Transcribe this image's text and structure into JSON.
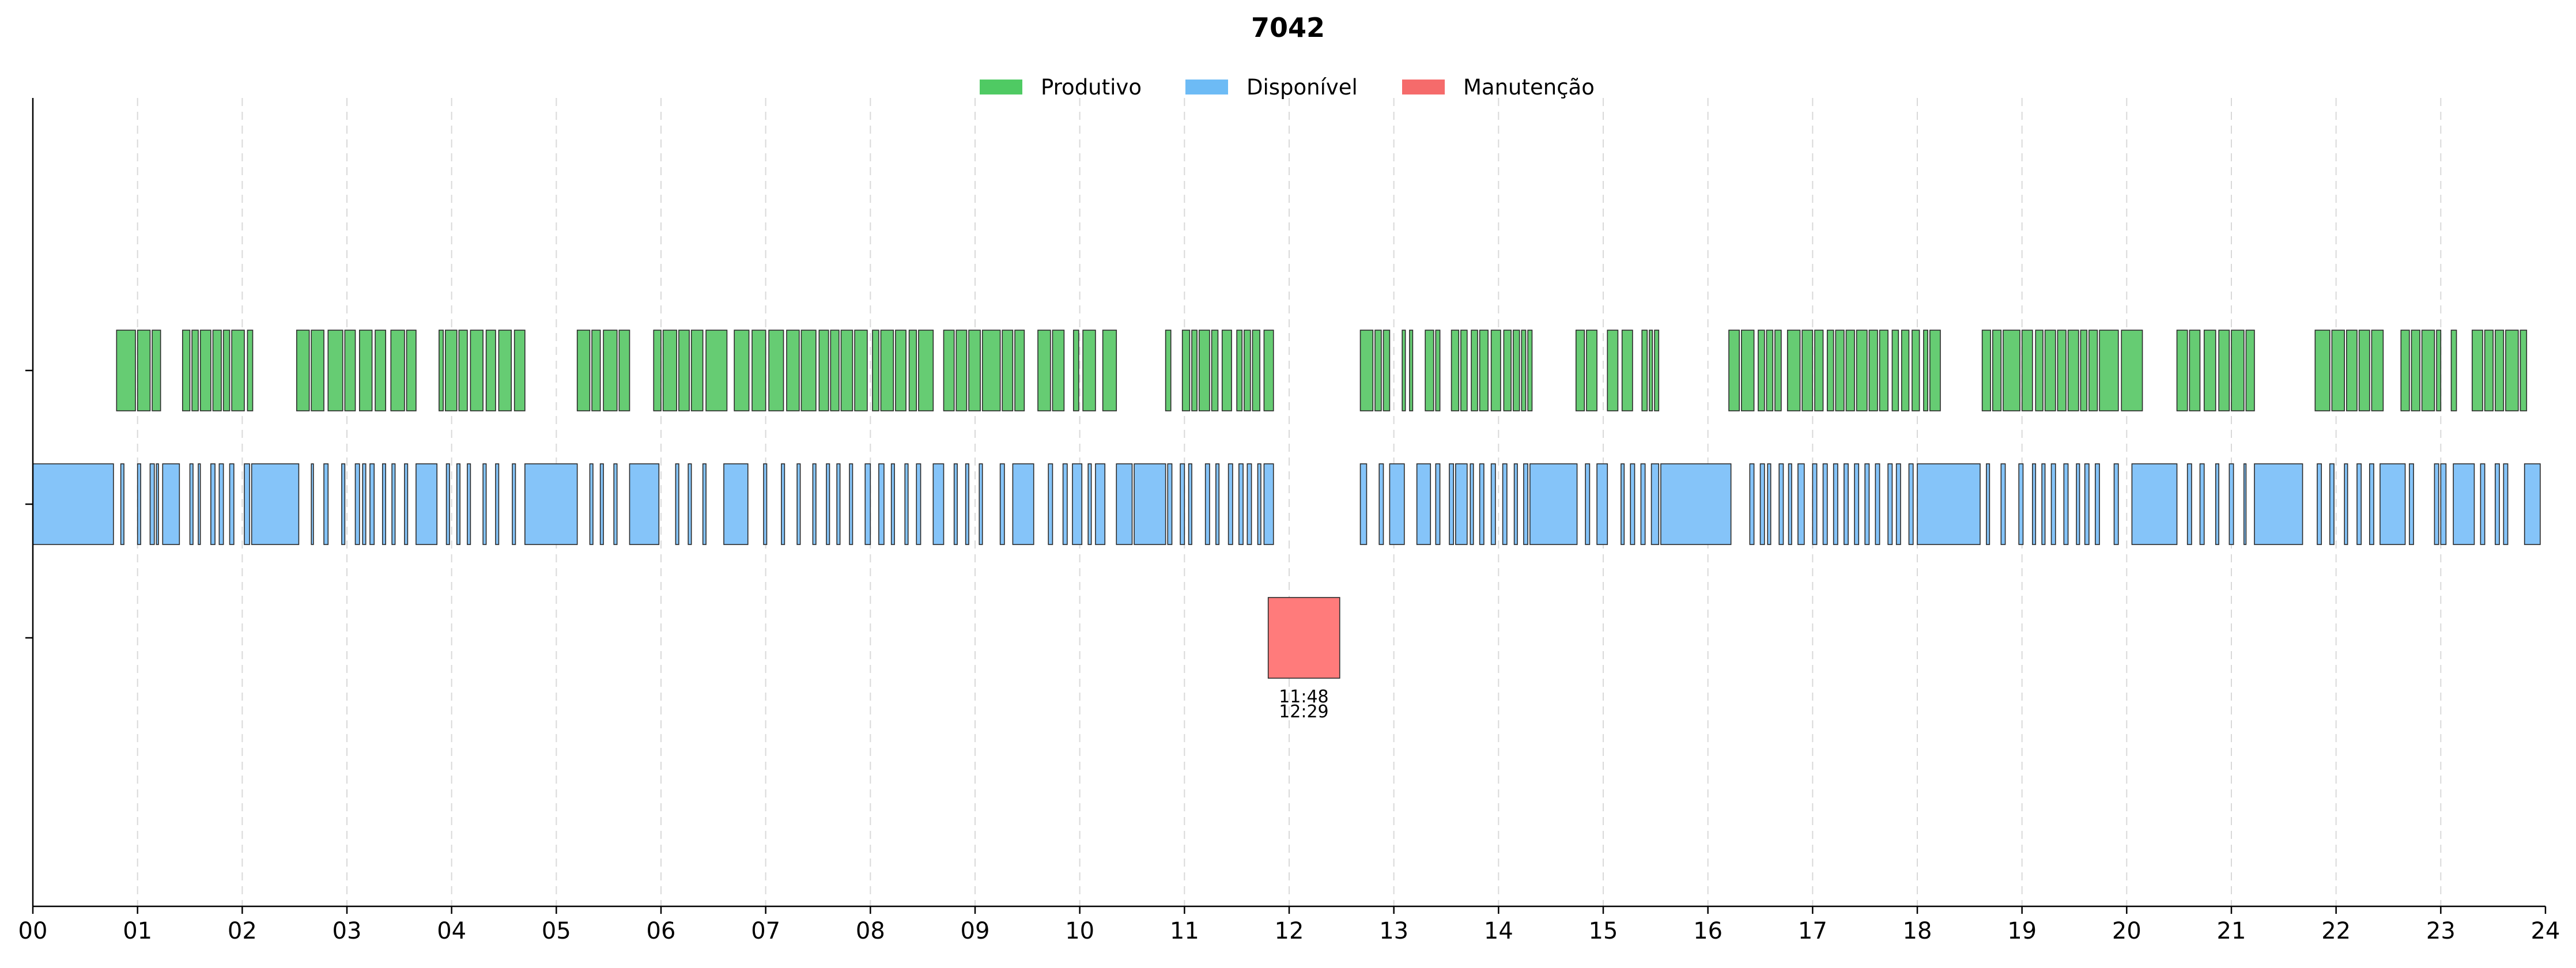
{
  "chart_data": {
    "type": "timeline",
    "title": "7042",
    "xlabel": "",
    "ylabel": "",
    "xlim": [
      0,
      24
    ],
    "x_ticks": [
      "00",
      "01",
      "02",
      "03",
      "04",
      "05",
      "06",
      "07",
      "08",
      "09",
      "10",
      "11",
      "12",
      "13",
      "14",
      "15",
      "16",
      "17",
      "18",
      "19",
      "20",
      "21",
      "22",
      "23",
      "24"
    ],
    "grid": "vertical dashed at each hour",
    "legend": {
      "placement": "top-center",
      "entries": [
        "Produtivo",
        "Disponível",
        "Manutenção"
      ]
    },
    "colors": {
      "Produtivo": "#66cc73",
      "Disponível": "#85c4f9",
      "Manutenção": "#ff7b7b",
      "legend_Produtivo": "#4fca63",
      "legend_Disponível": "#6dbbf5",
      "legend_Manutenção": "#f56b6b"
    },
    "series": [
      {
        "name": "Produtivo",
        "row": 0,
        "intervals": [
          [
            0.8,
            0.98
          ],
          [
            1.0,
            1.12
          ],
          [
            1.14,
            1.22
          ],
          [
            1.43,
            1.5
          ],
          [
            1.52,
            1.58
          ],
          [
            1.6,
            1.7
          ],
          [
            1.72,
            1.8
          ],
          [
            1.82,
            1.88
          ],
          [
            1.9,
            2.02
          ],
          [
            2.05,
            2.1
          ],
          [
            2.52,
            2.64
          ],
          [
            2.66,
            2.78
          ],
          [
            2.82,
            2.96
          ],
          [
            2.98,
            3.08
          ],
          [
            3.12,
            3.24
          ],
          [
            3.27,
            3.37
          ],
          [
            3.42,
            3.55
          ],
          [
            3.57,
            3.66
          ],
          [
            3.88,
            3.92
          ],
          [
            3.94,
            4.05
          ],
          [
            4.07,
            4.15
          ],
          [
            4.18,
            4.3
          ],
          [
            4.33,
            4.42
          ],
          [
            4.45,
            4.57
          ],
          [
            4.6,
            4.7
          ],
          [
            5.2,
            5.32
          ],
          [
            5.34,
            5.42
          ],
          [
            5.45,
            5.58
          ],
          [
            5.6,
            5.7
          ],
          [
            5.93,
            6.0
          ],
          [
            6.02,
            6.15
          ],
          [
            6.17,
            6.27
          ],
          [
            6.29,
            6.4
          ],
          [
            6.43,
            6.63
          ],
          [
            6.7,
            6.84
          ],
          [
            6.87,
            7.0
          ],
          [
            7.03,
            7.17
          ],
          [
            7.2,
            7.32
          ],
          [
            7.34,
            7.48
          ],
          [
            7.51,
            7.6
          ],
          [
            7.62,
            7.7
          ],
          [
            7.72,
            7.83
          ],
          [
            7.85,
            7.97
          ],
          [
            8.02,
            8.08
          ],
          [
            8.1,
            8.22
          ],
          [
            8.24,
            8.34
          ],
          [
            8.37,
            8.44
          ],
          [
            8.46,
            8.6
          ],
          [
            8.7,
            8.8
          ],
          [
            8.82,
            8.92
          ],
          [
            8.94,
            9.05
          ],
          [
            9.07,
            9.24
          ],
          [
            9.26,
            9.36
          ],
          [
            9.38,
            9.47
          ],
          [
            9.6,
            9.72
          ],
          [
            9.74,
            9.85
          ],
          [
            9.94,
            9.99
          ],
          [
            10.03,
            10.15
          ],
          [
            10.22,
            10.35
          ],
          [
            10.82,
            10.87
          ],
          [
            10.98,
            11.05
          ],
          [
            11.07,
            11.12
          ],
          [
            11.14,
            11.24
          ],
          [
            11.26,
            11.32
          ],
          [
            11.36,
            11.45
          ],
          [
            11.5,
            11.55
          ],
          [
            11.57,
            11.63
          ],
          [
            11.65,
            11.72
          ],
          [
            11.76,
            11.85
          ],
          [
            12.68,
            12.8
          ],
          [
            12.82,
            12.88
          ],
          [
            12.9,
            12.96
          ],
          [
            13.08,
            13.11
          ],
          [
            13.15,
            13.18
          ],
          [
            13.3,
            13.38
          ],
          [
            13.4,
            13.44
          ],
          [
            13.55,
            13.62
          ],
          [
            13.64,
            13.7
          ],
          [
            13.74,
            13.8
          ],
          [
            13.82,
            13.9
          ],
          [
            13.93,
            14.02
          ],
          [
            14.05,
            14.12
          ],
          [
            14.14,
            14.2
          ],
          [
            14.22,
            14.26
          ],
          [
            14.28,
            14.32
          ],
          [
            14.74,
            14.82
          ],
          [
            14.84,
            14.94
          ],
          [
            15.04,
            15.14
          ],
          [
            15.18,
            15.28
          ],
          [
            15.37,
            15.42
          ],
          [
            15.44,
            15.47
          ],
          [
            15.49,
            15.53
          ],
          [
            16.2,
            16.3
          ],
          [
            16.32,
            16.44
          ],
          [
            16.48,
            16.54
          ],
          [
            16.56,
            16.62
          ],
          [
            16.64,
            16.7
          ],
          [
            16.76,
            16.88
          ],
          [
            16.9,
            17.0
          ],
          [
            17.02,
            17.1
          ],
          [
            17.14,
            17.2
          ],
          [
            17.22,
            17.3
          ],
          [
            17.32,
            17.4
          ],
          [
            17.42,
            17.52
          ],
          [
            17.54,
            17.62
          ],
          [
            17.64,
            17.72
          ],
          [
            17.76,
            17.82
          ],
          [
            17.85,
            17.92
          ],
          [
            17.95,
            18.02
          ],
          [
            18.06,
            18.1
          ],
          [
            18.12,
            18.22
          ],
          [
            18.62,
            18.7
          ],
          [
            18.72,
            18.8
          ],
          [
            18.82,
            18.98
          ],
          [
            19.0,
            19.1
          ],
          [
            19.13,
            19.2
          ],
          [
            19.22,
            19.32
          ],
          [
            19.34,
            19.42
          ],
          [
            19.44,
            19.54
          ],
          [
            19.56,
            19.62
          ],
          [
            19.64,
            19.72
          ],
          [
            19.74,
            19.92
          ],
          [
            19.95,
            20.15
          ],
          [
            20.48,
            20.58
          ],
          [
            20.6,
            20.7
          ],
          [
            20.74,
            20.85
          ],
          [
            20.88,
            20.98
          ],
          [
            21.0,
            21.12
          ],
          [
            21.14,
            21.22
          ],
          [
            21.8,
            21.94
          ],
          [
            21.96,
            22.08
          ],
          [
            22.1,
            22.2
          ],
          [
            22.22,
            22.32
          ],
          [
            22.34,
            22.45
          ],
          [
            22.62,
            22.7
          ],
          [
            22.72,
            22.8
          ],
          [
            22.82,
            22.94
          ],
          [
            22.96,
            23.0
          ],
          [
            23.1,
            23.15
          ],
          [
            23.3,
            23.4
          ],
          [
            23.42,
            23.5
          ],
          [
            23.52,
            23.6
          ],
          [
            23.62,
            23.74
          ],
          [
            23.76,
            23.82
          ]
        ]
      },
      {
        "name": "Disponível",
        "row": 1,
        "intervals": [
          [
            0.0,
            0.77
          ],
          [
            0.84,
            0.87
          ],
          [
            1.0,
            1.03
          ],
          [
            1.12,
            1.16
          ],
          [
            1.18,
            1.2
          ],
          [
            1.24,
            1.4
          ],
          [
            1.5,
            1.53
          ],
          [
            1.58,
            1.6
          ],
          [
            1.7,
            1.74
          ],
          [
            1.78,
            1.82
          ],
          [
            1.88,
            1.92
          ],
          [
            2.02,
            2.07
          ],
          [
            2.09,
            2.54
          ],
          [
            2.66,
            2.68
          ],
          [
            2.78,
            2.82
          ],
          [
            2.95,
            2.98
          ],
          [
            3.08,
            3.12
          ],
          [
            3.15,
            3.18
          ],
          [
            3.22,
            3.26
          ],
          [
            3.34,
            3.37
          ],
          [
            3.43,
            3.46
          ],
          [
            3.55,
            3.58
          ],
          [
            3.66,
            3.86
          ],
          [
            3.95,
            3.98
          ],
          [
            4.05,
            4.08
          ],
          [
            4.15,
            4.18
          ],
          [
            4.3,
            4.33
          ],
          [
            4.42,
            4.45
          ],
          [
            4.58,
            4.61
          ],
          [
            4.7,
            5.2
          ],
          [
            5.32,
            5.35
          ],
          [
            5.42,
            5.45
          ],
          [
            5.55,
            5.58
          ],
          [
            5.7,
            5.98
          ],
          [
            6.14,
            6.17
          ],
          [
            6.26,
            6.29
          ],
          [
            6.4,
            6.43
          ],
          [
            6.6,
            6.83
          ],
          [
            6.98,
            7.01
          ],
          [
            7.15,
            7.18
          ],
          [
            7.3,
            7.33
          ],
          [
            7.45,
            7.48
          ],
          [
            7.58,
            7.61
          ],
          [
            7.68,
            7.71
          ],
          [
            7.8,
            7.83
          ],
          [
            7.95,
            8.0
          ],
          [
            8.08,
            8.13
          ],
          [
            8.2,
            8.23
          ],
          [
            8.33,
            8.36
          ],
          [
            8.44,
            8.48
          ],
          [
            8.6,
            8.7
          ],
          [
            8.8,
            8.83
          ],
          [
            8.91,
            8.94
          ],
          [
            9.04,
            9.07
          ],
          [
            9.24,
            9.28
          ],
          [
            9.36,
            9.56
          ],
          [
            9.7,
            9.74
          ],
          [
            9.84,
            9.88
          ],
          [
            9.93,
            10.02
          ],
          [
            10.08,
            10.11
          ],
          [
            10.15,
            10.24
          ],
          [
            10.35,
            10.5
          ],
          [
            10.52,
            10.82
          ],
          [
            10.84,
            10.88
          ],
          [
            10.96,
            11.0
          ],
          [
            11.04,
            11.07
          ],
          [
            11.2,
            11.24
          ],
          [
            11.3,
            11.33
          ],
          [
            11.42,
            11.46
          ],
          [
            11.52,
            11.56
          ],
          [
            11.6,
            11.64
          ],
          [
            11.7,
            11.73
          ],
          [
            11.76,
            11.85
          ],
          [
            12.68,
            12.74
          ],
          [
            12.86,
            12.9
          ],
          [
            12.96,
            13.1
          ],
          [
            13.22,
            13.35
          ],
          [
            13.4,
            13.44
          ],
          [
            13.53,
            13.57
          ],
          [
            13.59,
            13.7
          ],
          [
            13.73,
            13.76
          ],
          [
            13.82,
            13.86
          ],
          [
            13.93,
            13.97
          ],
          [
            14.04,
            14.08
          ],
          [
            14.15,
            14.18
          ],
          [
            14.24,
            14.28
          ],
          [
            14.3,
            14.75
          ],
          [
            14.83,
            14.87
          ],
          [
            14.94,
            15.04
          ],
          [
            15.17,
            15.2
          ],
          [
            15.26,
            15.3
          ],
          [
            15.36,
            15.4
          ],
          [
            15.46,
            15.53
          ],
          [
            15.55,
            16.22
          ],
          [
            16.4,
            16.44
          ],
          [
            16.5,
            16.54
          ],
          [
            16.57,
            16.6
          ],
          [
            16.68,
            16.72
          ],
          [
            16.77,
            16.8
          ],
          [
            16.86,
            16.92
          ],
          [
            17.0,
            17.04
          ],
          [
            17.1,
            17.14
          ],
          [
            17.2,
            17.24
          ],
          [
            17.3,
            17.34
          ],
          [
            17.4,
            17.44
          ],
          [
            17.5,
            17.54
          ],
          [
            17.6,
            17.64
          ],
          [
            17.72,
            17.76
          ],
          [
            17.8,
            17.84
          ],
          [
            17.92,
            17.96
          ],
          [
            18.0,
            18.6
          ],
          [
            18.66,
            18.69
          ],
          [
            18.8,
            18.84
          ],
          [
            18.97,
            19.01
          ],
          [
            19.1,
            19.13
          ],
          [
            19.19,
            19.22
          ],
          [
            19.28,
            19.32
          ],
          [
            19.4,
            19.44
          ],
          [
            19.52,
            19.55
          ],
          [
            19.6,
            19.64
          ],
          [
            19.7,
            19.74
          ],
          [
            19.88,
            19.92
          ],
          [
            20.05,
            20.48
          ],
          [
            20.58,
            20.62
          ],
          [
            20.7,
            20.74
          ],
          [
            20.85,
            20.88
          ],
          [
            20.98,
            21.02
          ],
          [
            21.12,
            21.14
          ],
          [
            21.22,
            21.68
          ],
          [
            21.82,
            21.86
          ],
          [
            21.94,
            21.98
          ],
          [
            22.08,
            22.11
          ],
          [
            22.2,
            22.24
          ],
          [
            22.32,
            22.36
          ],
          [
            22.42,
            22.66
          ],
          [
            22.7,
            22.74
          ],
          [
            22.94,
            22.98
          ],
          [
            23.0,
            23.05
          ],
          [
            23.12,
            23.32
          ],
          [
            23.38,
            23.42
          ],
          [
            23.52,
            23.56
          ],
          [
            23.6,
            23.64
          ],
          [
            23.8,
            23.95
          ]
        ]
      },
      {
        "name": "Manutenção",
        "row": 2,
        "intervals": [
          [
            11.8,
            12.483
          ]
        ],
        "annotations": [
          {
            "start_label": "11:48",
            "end_label": "12:29",
            "x": 12.14
          }
        ]
      }
    ]
  }
}
